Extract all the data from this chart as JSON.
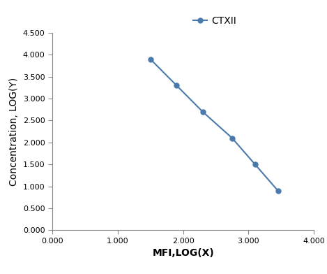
{
  "x": [
    1.5,
    1.9,
    2.3,
    2.75,
    3.1,
    3.45
  ],
  "y": [
    3.9,
    3.3,
    2.7,
    2.1,
    1.5,
    0.9
  ],
  "line_color": "#4a7aab",
  "marker": "o",
  "marker_size": 5,
  "legend_label": "CTXII",
  "xlabel": "MFI,LOG(X)",
  "ylabel": "Concentration, LOG(Y)",
  "xlim": [
    0.0,
    4.0
  ],
  "ylim": [
    0.0,
    4.5
  ],
  "xticks": [
    0.0,
    1.0,
    2.0,
    3.0,
    4.0
  ],
  "yticks": [
    0.0,
    0.5,
    1.0,
    1.5,
    2.0,
    2.5,
    3.0,
    3.5,
    4.0,
    4.5
  ],
  "xtick_labels": [
    "0.000",
    "1.000",
    "2.000",
    "3.000",
    "4.000"
  ],
  "ytick_labels": [
    "0.000",
    "0.500",
    "1.000",
    "1.500",
    "2.000",
    "2.500",
    "3.000",
    "3.500",
    "4.000",
    "4.500"
  ],
  "axis_label_fontsize": 10,
  "tick_fontsize": 8,
  "legend_fontsize": 10,
  "background_color": "#ffffff"
}
